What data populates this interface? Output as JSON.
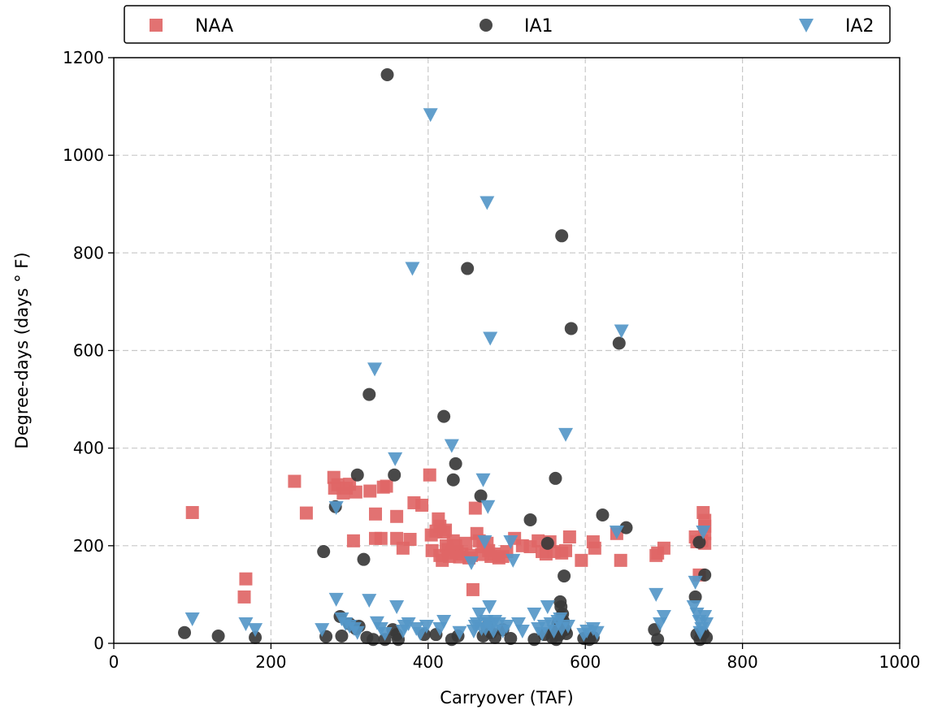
{
  "chart_data": {
    "type": "scatter",
    "title": "",
    "xlabel": "Carryover (TAF)",
    "ylabel": "Degree-days (days$^\\circ$F)",
    "ylabel_display": "Degree-days (days ° F)",
    "xlim": [
      0,
      1000
    ],
    "ylim": [
      0,
      1200
    ],
    "xticks": [
      "0",
      "200",
      "400",
      "600",
      "800",
      "1000"
    ],
    "yticks": [
      "0",
      "200",
      "400",
      "600",
      "800",
      "1000",
      "1200"
    ],
    "grid": true,
    "legend_position": "top",
    "series": [
      {
        "name": "NAA",
        "marker": "square",
        "color": "#e06666",
        "points": [
          [
            100,
            268
          ],
          [
            166,
            95
          ],
          [
            168,
            132
          ],
          [
            230,
            332
          ],
          [
            245,
            267
          ],
          [
            280,
            340
          ],
          [
            281,
            318
          ],
          [
            285,
            325
          ],
          [
            292,
            308
          ],
          [
            296,
            318
          ],
          [
            300,
            326
          ],
          [
            305,
            210
          ],
          [
            308,
            310
          ],
          [
            326,
            312
          ],
          [
            333,
            265
          ],
          [
            333,
            215
          ],
          [
            340,
            215
          ],
          [
            343,
            320
          ],
          [
            347,
            322
          ],
          [
            360,
            260
          ],
          [
            360,
            215
          ],
          [
            368,
            195
          ],
          [
            377,
            213
          ],
          [
            382,
            288
          ],
          [
            392,
            283
          ],
          [
            402,
            345
          ],
          [
            404,
            222
          ],
          [
            405,
            190
          ],
          [
            410,
            230
          ],
          [
            413,
            255
          ],
          [
            415,
            240
          ],
          [
            415,
            180
          ],
          [
            418,
            170
          ],
          [
            420,
            228
          ],
          [
            422,
            232
          ],
          [
            423,
            200
          ],
          [
            425,
            192
          ],
          [
            427,
            178
          ],
          [
            430,
            185
          ],
          [
            432,
            210
          ],
          [
            435,
            200
          ],
          [
            437,
            188
          ],
          [
            440,
            177
          ],
          [
            443,
            183
          ],
          [
            448,
            205
          ],
          [
            452,
            175
          ],
          [
            455,
            180
          ],
          [
            457,
            110
          ],
          [
            460,
            277
          ],
          [
            462,
            225
          ],
          [
            465,
            210
          ],
          [
            468,
            182
          ],
          [
            470,
            198
          ],
          [
            475,
            205
          ],
          [
            477,
            190
          ],
          [
            480,
            178
          ],
          [
            484,
            183
          ],
          [
            490,
            175
          ],
          [
            495,
            178
          ],
          [
            500,
            188
          ],
          [
            510,
            215
          ],
          [
            520,
            200
          ],
          [
            530,
            198
          ],
          [
            540,
            210
          ],
          [
            545,
            188
          ],
          [
            550,
            183
          ],
          [
            555,
            208
          ],
          [
            560,
            188
          ],
          [
            570,
            185
          ],
          [
            575,
            190
          ],
          [
            580,
            218
          ],
          [
            595,
            170
          ],
          [
            610,
            208
          ],
          [
            612,
            195
          ],
          [
            640,
            225
          ],
          [
            645,
            170
          ],
          [
            690,
            180
          ],
          [
            692,
            185
          ],
          [
            700,
            195
          ],
          [
            740,
            218
          ],
          [
            742,
            208
          ],
          [
            745,
            140
          ],
          [
            748,
            210
          ],
          [
            750,
            268
          ],
          [
            752,
            252
          ],
          [
            752,
            240
          ],
          [
            752,
            225
          ],
          [
            752,
            205
          ]
        ]
      },
      {
        "name": "IA1",
        "marker": "circle",
        "color": "#3a3a3a",
        "points": [
          [
            90,
            22
          ],
          [
            133,
            15
          ],
          [
            180,
            12
          ],
          [
            267,
            188
          ],
          [
            270,
            14
          ],
          [
            282,
            280
          ],
          [
            288,
            55
          ],
          [
            290,
            15
          ],
          [
            300,
            40
          ],
          [
            308,
            30
          ],
          [
            310,
            345
          ],
          [
            312,
            35
          ],
          [
            318,
            172
          ],
          [
            322,
            12
          ],
          [
            325,
            510
          ],
          [
            330,
            8
          ],
          [
            345,
            8
          ],
          [
            348,
            1165
          ],
          [
            355,
            28
          ],
          [
            357,
            345
          ],
          [
            360,
            18
          ],
          [
            362,
            8
          ],
          [
            395,
            18
          ],
          [
            420,
            465
          ],
          [
            410,
            18
          ],
          [
            430,
            8
          ],
          [
            432,
            335
          ],
          [
            435,
            368
          ],
          [
            438,
            15
          ],
          [
            450,
            768
          ],
          [
            467,
            302
          ],
          [
            470,
            15
          ],
          [
            475,
            35
          ],
          [
            480,
            22
          ],
          [
            485,
            12
          ],
          [
            495,
            28
          ],
          [
            505,
            10
          ],
          [
            530,
            253
          ],
          [
            535,
            8
          ],
          [
            548,
            18
          ],
          [
            552,
            205
          ],
          [
            558,
            12
          ],
          [
            560,
            25
          ],
          [
            562,
            338
          ],
          [
            563,
            8
          ],
          [
            565,
            40
          ],
          [
            566,
            30
          ],
          [
            567,
            18
          ],
          [
            568,
            85
          ],
          [
            569,
            75
          ],
          [
            570,
            835
          ],
          [
            571,
            60
          ],
          [
            572,
            45
          ],
          [
            573,
            138
          ],
          [
            574,
            28
          ],
          [
            576,
            20
          ],
          [
            582,
            645
          ],
          [
            598,
            10
          ],
          [
            605,
            8
          ],
          [
            610,
            12
          ],
          [
            622,
            263
          ],
          [
            643,
            615
          ],
          [
            652,
            237
          ],
          [
            688,
            28
          ],
          [
            692,
            8
          ],
          [
            740,
            95
          ],
          [
            742,
            18
          ],
          [
            745,
            207
          ],
          [
            746,
            8
          ],
          [
            748,
            22
          ],
          [
            750,
            20
          ],
          [
            752,
            140
          ],
          [
            754,
            12
          ]
        ]
      },
      {
        "name": "IA2",
        "marker": "triangle-down",
        "color": "#5597c8",
        "points": [
          [
            100,
            50
          ],
          [
            168,
            40
          ],
          [
            180,
            28
          ],
          [
            265,
            28
          ],
          [
            283,
            90
          ],
          [
            283,
            278
          ],
          [
            290,
            50
          ],
          [
            295,
            40
          ],
          [
            300,
            35
          ],
          [
            306,
            30
          ],
          [
            310,
            22
          ],
          [
            325,
            88
          ],
          [
            332,
            562
          ],
          [
            335,
            42
          ],
          [
            340,
            30
          ],
          [
            345,
            20
          ],
          [
            358,
            378
          ],
          [
            360,
            75
          ],
          [
            368,
            25
          ],
          [
            370,
            35
          ],
          [
            375,
            40
          ],
          [
            380,
            768
          ],
          [
            385,
            30
          ],
          [
            390,
            20
          ],
          [
            398,
            35
          ],
          [
            403,
            1083
          ],
          [
            415,
            30
          ],
          [
            420,
            45
          ],
          [
            430,
            405
          ],
          [
            440,
            22
          ],
          [
            455,
            165
          ],
          [
            458,
            25
          ],
          [
            460,
            35
          ],
          [
            462,
            40
          ],
          [
            465,
            60
          ],
          [
            468,
            30
          ],
          [
            470,
            335
          ],
          [
            472,
            208
          ],
          [
            473,
            30
          ],
          [
            474,
            45
          ],
          [
            475,
            903
          ],
          [
            476,
            280
          ],
          [
            477,
            40
          ],
          [
            478,
            75
          ],
          [
            479,
            625
          ],
          [
            480,
            35
          ],
          [
            483,
            25
          ],
          [
            485,
            45
          ],
          [
            490,
            40
          ],
          [
            495,
            25
          ],
          [
            500,
            35
          ],
          [
            505,
            208
          ],
          [
            508,
            170
          ],
          [
            515,
            40
          ],
          [
            520,
            25
          ],
          [
            535,
            60
          ],
          [
            540,
            30
          ],
          [
            545,
            20
          ],
          [
            548,
            35
          ],
          [
            552,
            75
          ],
          [
            556,
            40
          ],
          [
            560,
            25
          ],
          [
            565,
            45
          ],
          [
            568,
            50
          ],
          [
            570,
            30
          ],
          [
            575,
            428
          ],
          [
            578,
            35
          ],
          [
            598,
            18
          ],
          [
            602,
            25
          ],
          [
            610,
            30
          ],
          [
            615,
            22
          ],
          [
            640,
            228
          ],
          [
            646,
            640
          ],
          [
            690,
            100
          ],
          [
            695,
            40
          ],
          [
            700,
            55
          ],
          [
            738,
            75
          ],
          [
            740,
            125
          ],
          [
            742,
            60
          ],
          [
            745,
            45
          ],
          [
            746,
            22
          ],
          [
            748,
            30
          ],
          [
            750,
            228
          ],
          [
            752,
            55
          ],
          [
            754,
            40
          ]
        ]
      }
    ]
  }
}
